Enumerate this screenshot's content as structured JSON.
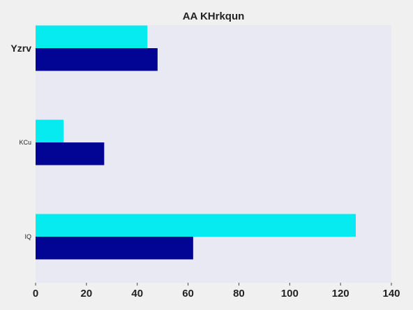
{
  "chart_data": {
    "type": "bar",
    "orientation": "horizontal",
    "title": "AA KHrkqun",
    "xlabel": "",
    "ylabel": "",
    "categories": [
      "Yzrv",
      "KCu",
      "IQ"
    ],
    "series": [
      {
        "color": "#05ebef",
        "values": [
          44,
          11,
          126
        ]
      },
      {
        "color": "#020594",
        "values": [
          48,
          27,
          62
        ]
      }
    ],
    "xlim": [
      0,
      140
    ],
    "xticks": [
      0,
      20,
      40,
      60,
      80,
      100,
      120,
      140
    ],
    "plot_background": "#e8e9f3",
    "page_background": "#f0f0f0",
    "grid": false,
    "legend": "none"
  }
}
